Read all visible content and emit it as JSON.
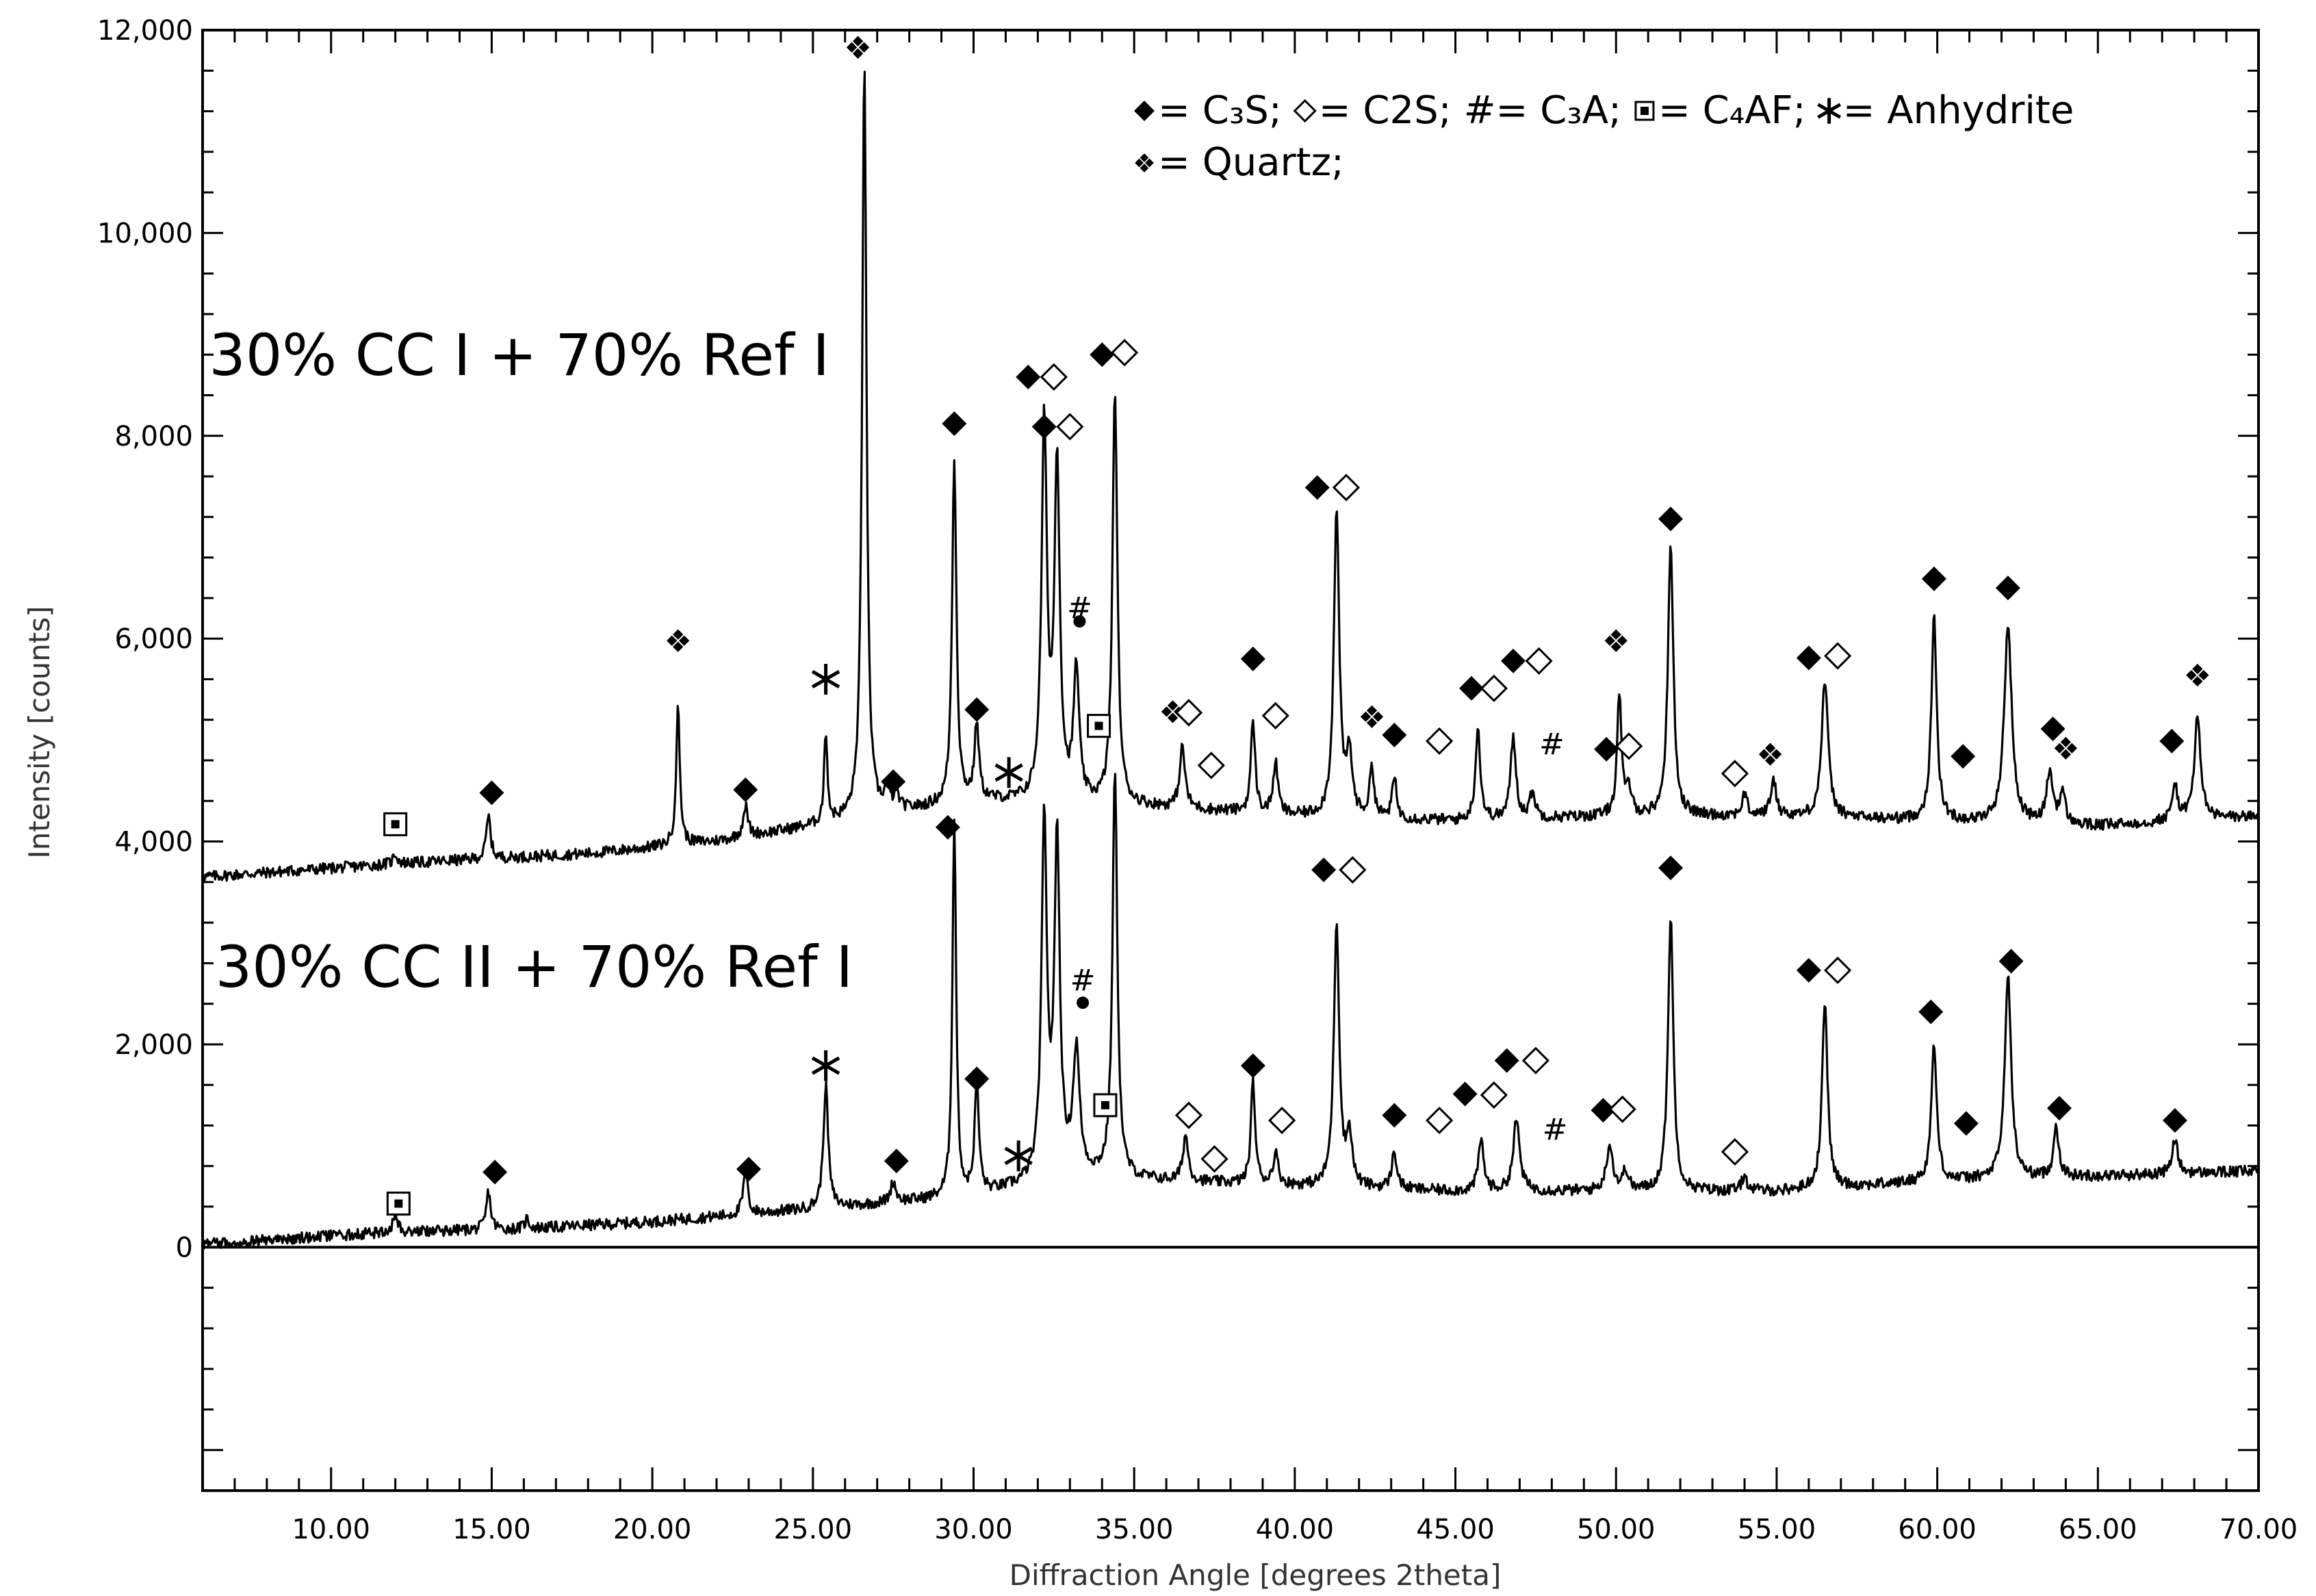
{
  "chart_data": {
    "type": "line",
    "xlabel": "Diffraction Angle [degrees 2theta]",
    "ylabel": "Intensity [counts]",
    "xlim": [
      6,
      70
    ],
    "ylim": [
      -2400,
      12000
    ],
    "x_ticks": [
      10,
      15,
      20,
      25,
      30,
      35,
      40,
      45,
      50,
      55,
      60,
      65,
      70
    ],
    "x_tick_labels": [
      "10.00",
      "15.00",
      "20.00",
      "25.00",
      "30.00",
      "35.00",
      "40.00",
      "45.00",
      "50.00",
      "55.00",
      "60.00",
      "65.00",
      "70.00"
    ],
    "y_ticks": [
      0,
      2000,
      4000,
      6000,
      8000,
      10000,
      12000
    ],
    "y_tick_labels": [
      "0",
      "2,000",
      "4,000",
      "6,000",
      "8,000",
      "10,000",
      "12,000"
    ],
    "grid": false,
    "legend_position": "top-right",
    "legend": {
      "line1": [
        {
          "symbol": "diamond-filled",
          "text": "= C₃S;"
        },
        {
          "symbol": "diamond-open",
          "text": "= C2S;"
        },
        {
          "symbol": "hash",
          "text": "#= C₃A;"
        },
        {
          "symbol": "square-dot",
          "text": "= C₄AF;"
        },
        {
          "symbol": "asterisk",
          "text": "= Anhydrite"
        }
      ],
      "line2": [
        {
          "symbol": "quad-diamond",
          "text": "= Quartz;"
        }
      ]
    },
    "series": [
      {
        "name": "30% CC I + 70% Ref I",
        "baseline": [
          [
            6,
            3650
          ],
          [
            12,
            3780
          ],
          [
            18,
            3880
          ],
          [
            22,
            4000
          ],
          [
            26,
            4200
          ],
          [
            30,
            4400
          ],
          [
            35,
            4350
          ],
          [
            40,
            4250
          ],
          [
            45,
            4200
          ],
          [
            50,
            4250
          ],
          [
            55,
            4250
          ],
          [
            60,
            4200
          ],
          [
            65,
            4150
          ],
          [
            70,
            4250
          ]
        ],
        "peaks": [
          [
            12.0,
            100,
            0.08
          ],
          [
            14.9,
            420,
            0.08
          ],
          [
            20.8,
            1350,
            0.07
          ],
          [
            22.9,
            300,
            0.09
          ],
          [
            25.4,
            900,
            0.06
          ],
          [
            26.6,
            7500,
            0.08
          ],
          [
            27.3,
            200,
            0.1
          ],
          [
            27.6,
            150,
            0.1
          ],
          [
            29.4,
            3400,
            0.08
          ],
          [
            30.1,
            750,
            0.08
          ],
          [
            32.2,
            3700,
            0.1
          ],
          [
            32.6,
            3300,
            0.1
          ],
          [
            33.2,
            1300,
            0.1
          ],
          [
            34.4,
            4100,
            0.09
          ],
          [
            36.5,
            600,
            0.1
          ],
          [
            38.7,
            900,
            0.08
          ],
          [
            39.4,
            500,
            0.09
          ],
          [
            41.3,
            3000,
            0.1
          ],
          [
            41.7,
            600,
            0.1
          ],
          [
            42.4,
            500,
            0.08
          ],
          [
            43.1,
            400,
            0.08
          ],
          [
            45.7,
            900,
            0.09
          ],
          [
            46.8,
            800,
            0.1
          ],
          [
            47.4,
            250,
            0.1
          ],
          [
            50.1,
            1200,
            0.08
          ],
          [
            50.4,
            250,
            0.1
          ],
          [
            51.7,
            2700,
            0.1
          ],
          [
            54.0,
            200,
            0.1
          ],
          [
            54.9,
            350,
            0.1
          ],
          [
            56.5,
            1350,
            0.12
          ],
          [
            59.9,
            2000,
            0.1
          ],
          [
            62.2,
            1950,
            0.14
          ],
          [
            63.5,
            500,
            0.12
          ],
          [
            63.9,
            300,
            0.1
          ],
          [
            67.4,
            350,
            0.1
          ],
          [
            68.1,
            1000,
            0.12
          ]
        ]
      },
      {
        "name": "30% CC II + 70% Ref I",
        "baseline": [
          [
            6,
            30
          ],
          [
            12,
            150
          ],
          [
            16,
            180
          ],
          [
            20,
            250
          ],
          [
            24,
            350
          ],
          [
            28,
            450
          ],
          [
            30,
            500
          ],
          [
            33,
            700
          ],
          [
            36,
            650
          ],
          [
            40,
            600
          ],
          [
            45,
            550
          ],
          [
            50,
            550
          ],
          [
            55,
            550
          ],
          [
            60,
            650
          ],
          [
            65,
            700
          ],
          [
            70,
            750
          ]
        ],
        "peaks": [
          [
            12.0,
            200,
            0.08
          ],
          [
            14.9,
            380,
            0.08
          ],
          [
            16.1,
            100,
            0.08
          ],
          [
            22.9,
            400,
            0.09
          ],
          [
            25.4,
            1200,
            0.09
          ],
          [
            27.5,
            200,
            0.1
          ],
          [
            29.4,
            3700,
            0.07
          ],
          [
            30.1,
            1100,
            0.08
          ],
          [
            32.2,
            3500,
            0.1
          ],
          [
            32.6,
            3300,
            0.1
          ],
          [
            33.2,
            1200,
            0.12
          ],
          [
            34.4,
            4000,
            0.09
          ],
          [
            36.6,
            450,
            0.1
          ],
          [
            38.7,
            1000,
            0.08
          ],
          [
            39.4,
            300,
            0.1
          ],
          [
            41.3,
            2600,
            0.1
          ],
          [
            41.7,
            500,
            0.1
          ],
          [
            43.1,
            350,
            0.1
          ],
          [
            45.8,
            500,
            0.1
          ],
          [
            46.9,
            700,
            0.12
          ],
          [
            49.8,
            450,
            0.12
          ],
          [
            50.3,
            200,
            0.1
          ],
          [
            51.7,
            2700,
            0.1
          ],
          [
            54.0,
            150,
            0.1
          ],
          [
            56.5,
            1850,
            0.1
          ],
          [
            59.9,
            1350,
            0.1
          ],
          [
            62.2,
            2000,
            0.12
          ],
          [
            63.7,
            500,
            0.1
          ],
          [
            67.4,
            350,
            0.1
          ]
        ]
      }
    ],
    "annotations": {
      "series_labels": [
        {
          "text": "30% CC I + 70% Ref I",
          "x": 6.2,
          "y": 8800
        },
        {
          "text": "30% CC II + 70% Ref I",
          "x": 6.4,
          "y": 2770
        }
      ],
      "markers": [
        {
          "type": "square-dot",
          "x": 12.0,
          "y": 4170
        },
        {
          "type": "diamond-filled",
          "x": 15.0,
          "y": 4480
        },
        {
          "type": "quad-diamond",
          "x": 20.8,
          "y": 5980
        },
        {
          "type": "diamond-filled",
          "x": 22.9,
          "y": 4510
        },
        {
          "type": "asterisk",
          "x": 25.4,
          "y": 5600
        },
        {
          "type": "quad-diamond",
          "x": 26.4,
          "y": 11830
        },
        {
          "type": "diamond-filled",
          "x": 27.5,
          "y": 4590
        },
        {
          "type": "asterisk",
          "x": 31.1,
          "y": 4680
        },
        {
          "type": "diamond-filled",
          "x": 29.4,
          "y": 8120
        },
        {
          "type": "diamond-filled",
          "x": 30.1,
          "y": 5300
        },
        {
          "type": "diamond-filled",
          "x": 31.7,
          "y": 8580
        },
        {
          "type": "diamond-open",
          "x": 32.5,
          "y": 8580
        },
        {
          "type": "diamond-filled",
          "x": 32.2,
          "y": 8090
        },
        {
          "type": "diamond-open",
          "x": 33.0,
          "y": 8090
        },
        {
          "type": "hash",
          "x": 33.3,
          "y": 6300
        },
        {
          "type": "dot",
          "x": 33.3,
          "y": 6170
        },
        {
          "type": "square-dot",
          "x": 33.9,
          "y": 5140
        },
        {
          "type": "diamond-filled",
          "x": 34.0,
          "y": 8800
        },
        {
          "type": "diamond-open",
          "x": 34.7,
          "y": 8820
        },
        {
          "type": "quad-diamond",
          "x": 36.2,
          "y": 5280
        },
        {
          "type": "diamond-open",
          "x": 36.7,
          "y": 5270
        },
        {
          "type": "diamond-open",
          "x": 37.4,
          "y": 4750
        },
        {
          "type": "diamond-filled",
          "x": 38.7,
          "y": 5800
        },
        {
          "type": "diamond-open",
          "x": 39.4,
          "y": 5240
        },
        {
          "type": "diamond-filled",
          "x": 40.7,
          "y": 7490
        },
        {
          "type": "diamond-open",
          "x": 41.6,
          "y": 7490
        },
        {
          "type": "quad-diamond",
          "x": 42.4,
          "y": 5230
        },
        {
          "type": "diamond-filled",
          "x": 43.1,
          "y": 5050
        },
        {
          "type": "diamond-open",
          "x": 44.5,
          "y": 4990
        },
        {
          "type": "diamond-filled",
          "x": 45.5,
          "y": 5510
        },
        {
          "type": "diamond-open",
          "x": 46.2,
          "y": 5510
        },
        {
          "type": "diamond-filled",
          "x": 46.8,
          "y": 5780
        },
        {
          "type": "diamond-open",
          "x": 47.6,
          "y": 5780
        },
        {
          "type": "hash",
          "x": 48.0,
          "y": 4960
        },
        {
          "type": "diamond-filled",
          "x": 49.7,
          "y": 4910
        },
        {
          "type": "diamond-open",
          "x": 50.4,
          "y": 4940
        },
        {
          "type": "quad-diamond",
          "x": 50.0,
          "y": 5980
        },
        {
          "type": "diamond-filled",
          "x": 51.7,
          "y": 7180
        },
        {
          "type": "diamond-open",
          "x": 53.7,
          "y": 4670
        },
        {
          "type": "quad-diamond",
          "x": 54.8,
          "y": 4860
        },
        {
          "type": "diamond-filled",
          "x": 56.0,
          "y": 5810
        },
        {
          "type": "diamond-open",
          "x": 56.9,
          "y": 5830
        },
        {
          "type": "diamond-filled",
          "x": 59.9,
          "y": 6590
        },
        {
          "type": "diamond-filled",
          "x": 60.8,
          "y": 4840
        },
        {
          "type": "diamond-filled",
          "x": 62.2,
          "y": 6500
        },
        {
          "type": "diamond-filled",
          "x": 63.6,
          "y": 5110
        },
        {
          "type": "quad-diamond",
          "x": 64.0,
          "y": 4920
        },
        {
          "type": "diamond-filled",
          "x": 67.3,
          "y": 4990
        },
        {
          "type": "quad-diamond",
          "x": 68.1,
          "y": 5640
        },
        {
          "type": "square-dot",
          "x": 12.1,
          "y": 430
        },
        {
          "type": "diamond-filled",
          "x": 15.1,
          "y": 740
        },
        {
          "type": "diamond-filled",
          "x": 23.0,
          "y": 770
        },
        {
          "type": "asterisk",
          "x": 25.4,
          "y": 1790
        },
        {
          "type": "diamond-filled",
          "x": 27.6,
          "y": 850
        },
        {
          "type": "diamond-filled",
          "x": 29.2,
          "y": 4140
        },
        {
          "type": "diamond-filled",
          "x": 30.1,
          "y": 1660
        },
        {
          "type": "asterisk",
          "x": 31.4,
          "y": 900
        },
        {
          "type": "hash",
          "x": 33.4,
          "y": 2630
        },
        {
          "type": "dot",
          "x": 33.4,
          "y": 2410
        },
        {
          "type": "square-dot",
          "x": 34.1,
          "y": 1400
        },
        {
          "type": "diamond-open",
          "x": 36.7,
          "y": 1300
        },
        {
          "type": "diamond-open",
          "x": 37.5,
          "y": 870
        },
        {
          "type": "diamond-filled",
          "x": 38.7,
          "y": 1790
        },
        {
          "type": "diamond-open",
          "x": 39.6,
          "y": 1250
        },
        {
          "type": "diamond-filled",
          "x": 40.9,
          "y": 3720
        },
        {
          "type": "diamond-open",
          "x": 41.8,
          "y": 3720
        },
        {
          "type": "diamond-filled",
          "x": 43.1,
          "y": 1300
        },
        {
          "type": "diamond-open",
          "x": 44.5,
          "y": 1250
        },
        {
          "type": "diamond-filled",
          "x": 45.3,
          "y": 1510
        },
        {
          "type": "diamond-open",
          "x": 46.2,
          "y": 1500
        },
        {
          "type": "diamond-filled",
          "x": 46.6,
          "y": 1840
        },
        {
          "type": "diamond-open",
          "x": 47.5,
          "y": 1840
        },
        {
          "type": "hash",
          "x": 48.1,
          "y": 1160
        },
        {
          "type": "diamond-filled",
          "x": 49.6,
          "y": 1350
        },
        {
          "type": "diamond-open",
          "x": 50.2,
          "y": 1360
        },
        {
          "type": "diamond-filled",
          "x": 51.7,
          "y": 3740
        },
        {
          "type": "diamond-open",
          "x": 53.7,
          "y": 940
        },
        {
          "type": "diamond-filled",
          "x": 56.0,
          "y": 2730
        },
        {
          "type": "diamond-open",
          "x": 56.9,
          "y": 2730
        },
        {
          "type": "diamond-filled",
          "x": 59.8,
          "y": 2320
        },
        {
          "type": "diamond-filled",
          "x": 60.9,
          "y": 1220
        },
        {
          "type": "diamond-filled",
          "x": 62.3,
          "y": 2820
        },
        {
          "type": "diamond-filled",
          "x": 63.8,
          "y": 1370
        },
        {
          "type": "diamond-filled",
          "x": 67.4,
          "y": 1250
        }
      ]
    }
  }
}
